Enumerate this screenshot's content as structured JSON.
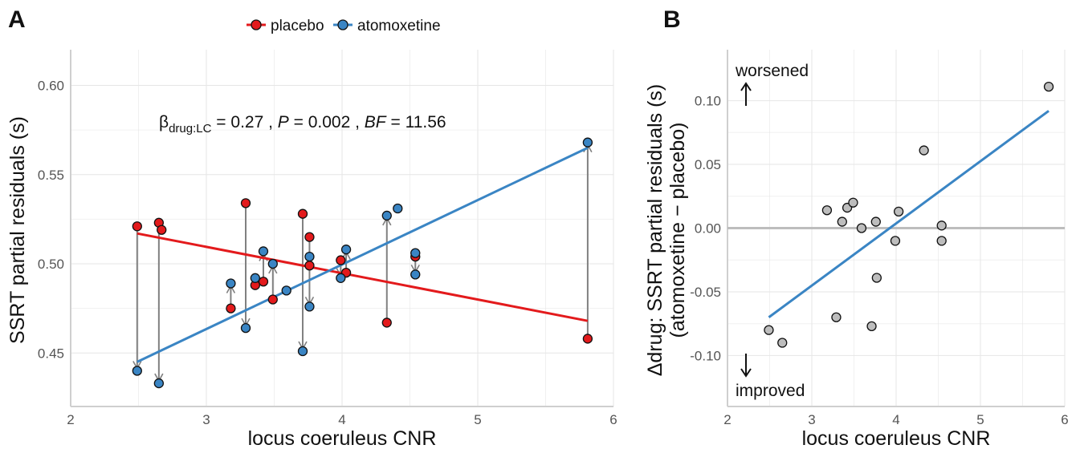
{
  "chart_data": [
    {
      "panel": "A",
      "type": "scatter",
      "xlabel": "locus coeruleus CNR",
      "ylabel": "SSRT partial residuals (s)",
      "xlim": [
        2,
        6
      ],
      "ylim": [
        0.42,
        0.62
      ],
      "xticks": [
        2,
        3,
        4,
        5,
        6
      ],
      "yticks": [
        0.45,
        0.5,
        0.55,
        0.6
      ],
      "ytick_labels": [
        "0.45",
        "0.50",
        "0.55",
        "0.60"
      ],
      "grid": true,
      "legend": {
        "position": "top",
        "entries": [
          "placebo",
          "atomoxetine"
        ]
      },
      "annotation": {
        "beta": "β",
        "beta_sub": "drug:LC",
        "beta_value": " = 0.27 , ",
        "p_label": "P",
        "p_value": " = 0.002 , ",
        "bf_label": "BF",
        "bf_value": " = 11.56"
      },
      "series": [
        {
          "name": "placebo",
          "color": "#e31a1c",
          "points": [
            {
              "x": 2.49,
              "y": 0.521
            },
            {
              "x": 2.65,
              "y": 0.523
            },
            {
              "x": 2.67,
              "y": 0.519
            },
            {
              "x": 3.18,
              "y": 0.475
            },
            {
              "x": 3.29,
              "y": 0.534
            },
            {
              "x": 3.36,
              "y": 0.488
            },
            {
              "x": 3.42,
              "y": 0.49
            },
            {
              "x": 3.49,
              "y": 0.48
            },
            {
              "x": 3.71,
              "y": 0.528
            },
            {
              "x": 3.76,
              "y": 0.515
            },
            {
              "x": 3.76,
              "y": 0.499
            },
            {
              "x": 3.99,
              "y": 0.502
            },
            {
              "x": 4.03,
              "y": 0.495
            },
            {
              "x": 4.33,
              "y": 0.467
            },
            {
              "x": 4.54,
              "y": 0.504
            },
            {
              "x": 5.81,
              "y": 0.458
            }
          ],
          "fit": [
            [
              2.49,
              0.517
            ],
            [
              5.81,
              0.468
            ]
          ]
        },
        {
          "name": "atomoxetine",
          "color": "#3a85c4",
          "points": [
            {
              "x": 2.49,
              "y": 0.44
            },
            {
              "x": 2.65,
              "y": 0.433
            },
            {
              "x": 3.18,
              "y": 0.489
            },
            {
              "x": 3.29,
              "y": 0.464
            },
            {
              "x": 3.36,
              "y": 0.492
            },
            {
              "x": 3.42,
              "y": 0.507
            },
            {
              "x": 3.49,
              "y": 0.5
            },
            {
              "x": 3.59,
              "y": 0.485
            },
            {
              "x": 3.71,
              "y": 0.451
            },
            {
              "x": 3.76,
              "y": 0.504
            },
            {
              "x": 3.76,
              "y": 0.476
            },
            {
              "x": 3.99,
              "y": 0.492
            },
            {
              "x": 4.03,
              "y": 0.508
            },
            {
              "x": 4.33,
              "y": 0.527
            },
            {
              "x": 4.41,
              "y": 0.531
            },
            {
              "x": 4.54,
              "y": 0.494
            },
            {
              "x": 4.54,
              "y": 0.506
            },
            {
              "x": 5.81,
              "y": 0.568
            }
          ],
          "fit": [
            [
              2.49,
              0.445
            ],
            [
              5.81,
              0.565
            ]
          ]
        }
      ],
      "arrows": [
        {
          "x": 2.49,
          "from": 0.521,
          "to": 0.44
        },
        {
          "x": 2.65,
          "from": 0.523,
          "to": 0.433
        },
        {
          "x": 3.18,
          "from": 0.475,
          "to": 0.489
        },
        {
          "x": 3.29,
          "from": 0.534,
          "to": 0.464
        },
        {
          "x": 3.36,
          "from": 0.488,
          "to": 0.492
        },
        {
          "x": 3.42,
          "from": 0.49,
          "to": 0.507
        },
        {
          "x": 3.49,
          "from": 0.48,
          "to": 0.5
        },
        {
          "x": 3.71,
          "from": 0.528,
          "to": 0.451
        },
        {
          "x": 3.76,
          "from": 0.515,
          "to": 0.476
        },
        {
          "x": 3.99,
          "from": 0.502,
          "to": 0.492
        },
        {
          "x": 4.03,
          "from": 0.495,
          "to": 0.508
        },
        {
          "x": 4.33,
          "from": 0.467,
          "to": 0.527
        },
        {
          "x": 4.54,
          "from": 0.504,
          "to": 0.494
        },
        {
          "x": 5.81,
          "from": 0.458,
          "to": 0.568
        }
      ]
    },
    {
      "panel": "B",
      "type": "scatter",
      "xlabel": "locus coeruleus CNR",
      "ylabel": "Δdrug: SSRT partial residuals (s)",
      "ylabel2": "(atomoxetine − placebo)",
      "xlim": [
        2,
        6
      ],
      "ylim": [
        -0.14,
        0.14
      ],
      "xticks": [
        2,
        3,
        4,
        5,
        6
      ],
      "yticks": [
        -0.1,
        -0.05,
        0.0,
        0.05,
        0.1
      ],
      "ytick_labels": [
        "-0.10",
        "-0.05",
        "0.00",
        "0.05",
        "0.10"
      ],
      "grid": true,
      "zero_line": true,
      "annotations": {
        "top": "worsened",
        "bottom": "improved"
      },
      "point_color": "#bdbdbd",
      "line_color": "#3a85c4",
      "points": [
        {
          "x": 2.49,
          "y": -0.08
        },
        {
          "x": 2.65,
          "y": -0.09
        },
        {
          "x": 3.18,
          "y": 0.014
        },
        {
          "x": 3.29,
          "y": -0.07
        },
        {
          "x": 3.36,
          "y": 0.005
        },
        {
          "x": 3.42,
          "y": 0.016
        },
        {
          "x": 3.49,
          "y": 0.02
        },
        {
          "x": 3.59,
          "y": 0.0
        },
        {
          "x": 3.71,
          "y": -0.077
        },
        {
          "x": 3.76,
          "y": 0.005
        },
        {
          "x": 3.77,
          "y": -0.039
        },
        {
          "x": 3.99,
          "y": -0.01
        },
        {
          "x": 4.03,
          "y": 0.013
        },
        {
          "x": 4.33,
          "y": 0.061
        },
        {
          "x": 4.54,
          "y": 0.002
        },
        {
          "x": 4.54,
          "y": -0.01
        },
        {
          "x": 5.81,
          "y": 0.111
        }
      ],
      "fit": [
        [
          2.49,
          -0.07
        ],
        [
          5.81,
          0.092
        ]
      ]
    }
  ]
}
